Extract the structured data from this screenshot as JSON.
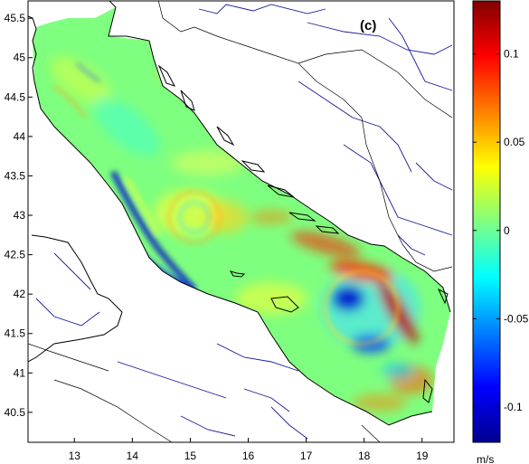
{
  "panel_label": "(c)",
  "map": {
    "lon_ticks": [
      "13",
      "14",
      "15",
      "16",
      "17",
      "18",
      "19"
    ],
    "lat_ticks": [
      "45.5",
      "45",
      "44.5",
      "44",
      "43.5",
      "43",
      "42.5",
      "42",
      "41.5",
      "41",
      "40.5"
    ],
    "lon_range": [
      12.2,
      19.55
    ],
    "lat_range": [
      40.12,
      45.72
    ]
  },
  "colorbar": {
    "unit": "m/s",
    "tick_labels": [
      "0.1",
      "0.05",
      "0",
      "-0.05",
      "-0.1"
    ],
    "tick_values": [
      0.1,
      0.05,
      0,
      -0.05,
      -0.1
    ],
    "range": [
      -0.12,
      0.13
    ],
    "colormap": "jet",
    "colors": [
      "#00008f",
      "#0000ff",
      "#00ffff",
      "#80ff80",
      "#ffff00",
      "#ff0000",
      "#800000"
    ]
  },
  "colors": {
    "background_field": "#7fff7f",
    "coastline": "#000000",
    "rivers": "#1a1a9a",
    "borders": "#000000"
  }
}
